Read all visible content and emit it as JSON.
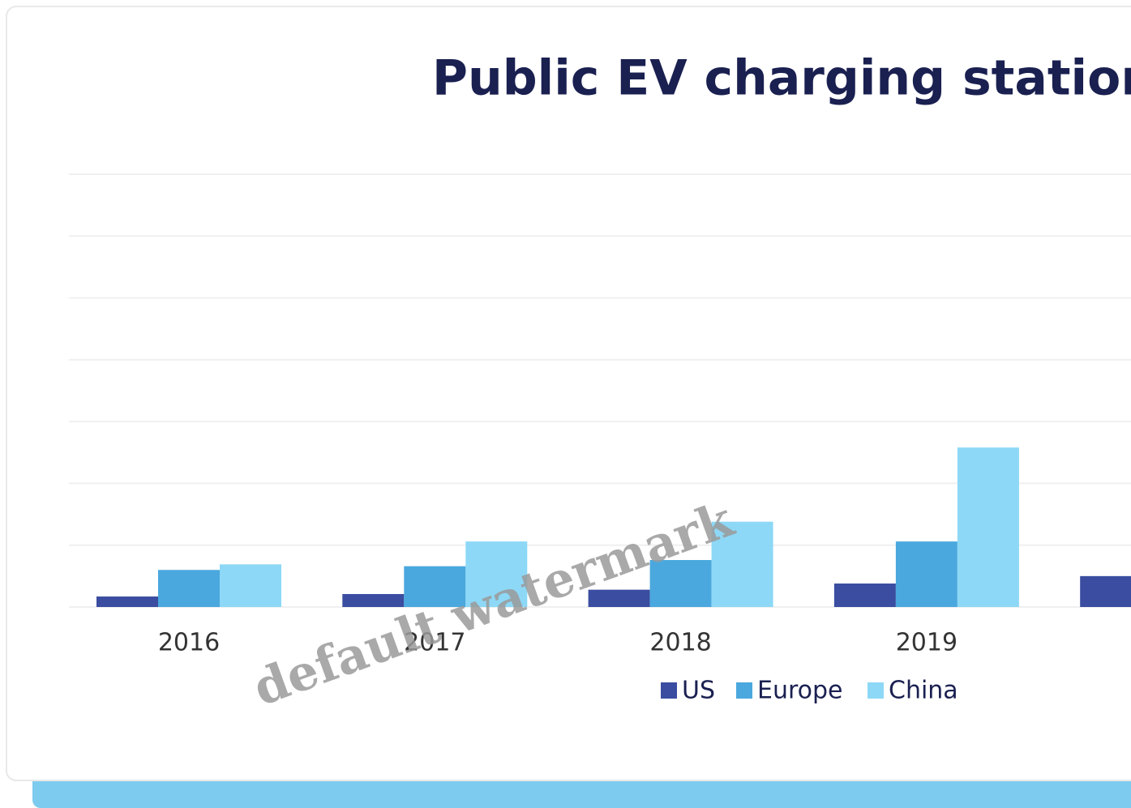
{
  "chart_data": {
    "type": "bar",
    "title": "Public EV charging station",
    "categories": [
      "2016",
      "2017",
      "2018",
      "2019",
      null
    ],
    "series": [
      {
        "name": "US",
        "color": "#3a4da0",
        "values": [
          0.17,
          0.21,
          0.28,
          0.38,
          0.5
        ]
      },
      {
        "name": "Europe",
        "color": "#4aa8de",
        "values": [
          0.6,
          0.66,
          0.76,
          1.06,
          null
        ]
      },
      {
        "name": "China",
        "color": "#8dd8f6",
        "values": [
          0.69,
          1.06,
          1.38,
          2.58,
          null
        ]
      }
    ],
    "ylim": [
      0,
      7
    ],
    "yticks": [
      0,
      1,
      2,
      3,
      4,
      5,
      6,
      7
    ],
    "grid": true,
    "legend": "bottom",
    "watermark": "default watermark"
  }
}
